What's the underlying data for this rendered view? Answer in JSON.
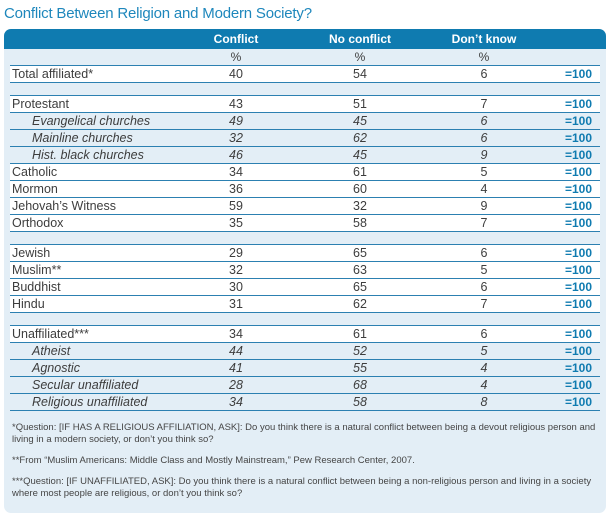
{
  "title": "Conflict Between Religion and Modern Society?",
  "colors": {
    "band_blue": "#0f7bb0",
    "panel_light_blue": "#e3eef6",
    "rule_blue": "#2c80b1",
    "title_blue": "#1e87bc",
    "total_blue": "#0f7bb0",
    "body_text": "#3d3d3d"
  },
  "chart_data": {
    "type": "table",
    "title": "Conflict Between Religion and Modern Society?",
    "columns": [
      "Conflict",
      "No conflict",
      "Don’t know"
    ],
    "percent_symbol": "%",
    "total_label": "=100",
    "rows": [
      {
        "style": "normal",
        "label": "Total affiliated*",
        "values": [
          40,
          54,
          6
        ],
        "total": "=100"
      },
      {
        "style": "spacer"
      },
      {
        "style": "normal",
        "label": "Protestant",
        "values": [
          43,
          51,
          7
        ],
        "total": "=100"
      },
      {
        "style": "sub",
        "label": "Evangelical churches",
        "values": [
          49,
          45,
          6
        ],
        "total": "=100"
      },
      {
        "style": "sub",
        "label": "Mainline churches",
        "values": [
          32,
          62,
          6
        ],
        "total": "=100"
      },
      {
        "style": "sub",
        "label": "Hist. black churches",
        "values": [
          46,
          45,
          9
        ],
        "total": "=100"
      },
      {
        "style": "normal",
        "label": "Catholic",
        "values": [
          34,
          61,
          5
        ],
        "total": "=100"
      },
      {
        "style": "normal",
        "label": "Mormon",
        "values": [
          36,
          60,
          4
        ],
        "total": "=100"
      },
      {
        "style": "normal",
        "label": "Jehovah’s Witness",
        "values": [
          59,
          32,
          9
        ],
        "total": "=100"
      },
      {
        "style": "normal",
        "label": "Orthodox",
        "values": [
          35,
          58,
          7
        ],
        "total": "=100"
      },
      {
        "style": "spacer"
      },
      {
        "style": "normal",
        "label": "Jewish",
        "values": [
          29,
          65,
          6
        ],
        "total": "=100"
      },
      {
        "style": "normal",
        "label": "Muslim**",
        "values": [
          32,
          63,
          5
        ],
        "total": "=100"
      },
      {
        "style": "normal",
        "label": "Buddhist",
        "values": [
          30,
          65,
          6
        ],
        "total": "=100"
      },
      {
        "style": "normal",
        "label": "Hindu",
        "values": [
          31,
          62,
          7
        ],
        "total": "=100"
      },
      {
        "style": "spacer"
      },
      {
        "style": "normal",
        "label": "Unaffiliated***",
        "values": [
          34,
          61,
          6
        ],
        "total": "=100"
      },
      {
        "style": "sub",
        "label": "Atheist",
        "values": [
          44,
          52,
          5
        ],
        "total": "=100"
      },
      {
        "style": "sub",
        "label": "Agnostic",
        "values": [
          41,
          55,
          4
        ],
        "total": "=100"
      },
      {
        "style": "sub",
        "label": "Secular unaffiliated",
        "values": [
          28,
          68,
          4
        ],
        "total": "=100"
      },
      {
        "style": "sub",
        "label": "Religious unaffiliated",
        "values": [
          34,
          58,
          8
        ],
        "total": "=100"
      }
    ]
  },
  "footnotes": [
    "*Question:  [IF HAS A RELIGIOUS AFFILIATION, ASK]: Do you think there is a natural conflict between being a devout religious person and living in a modern society, or don’t you think so?",
    "**From “Muslim Americans: Middle Class and Mostly Mainstream,” Pew Research Center, 2007.",
    "***Question:  [IF UNAFFILIATED, ASK]: Do you think there is a natural conflict between being a non-religious person and living in a society where most people are religious, or don’t you think so?"
  ]
}
